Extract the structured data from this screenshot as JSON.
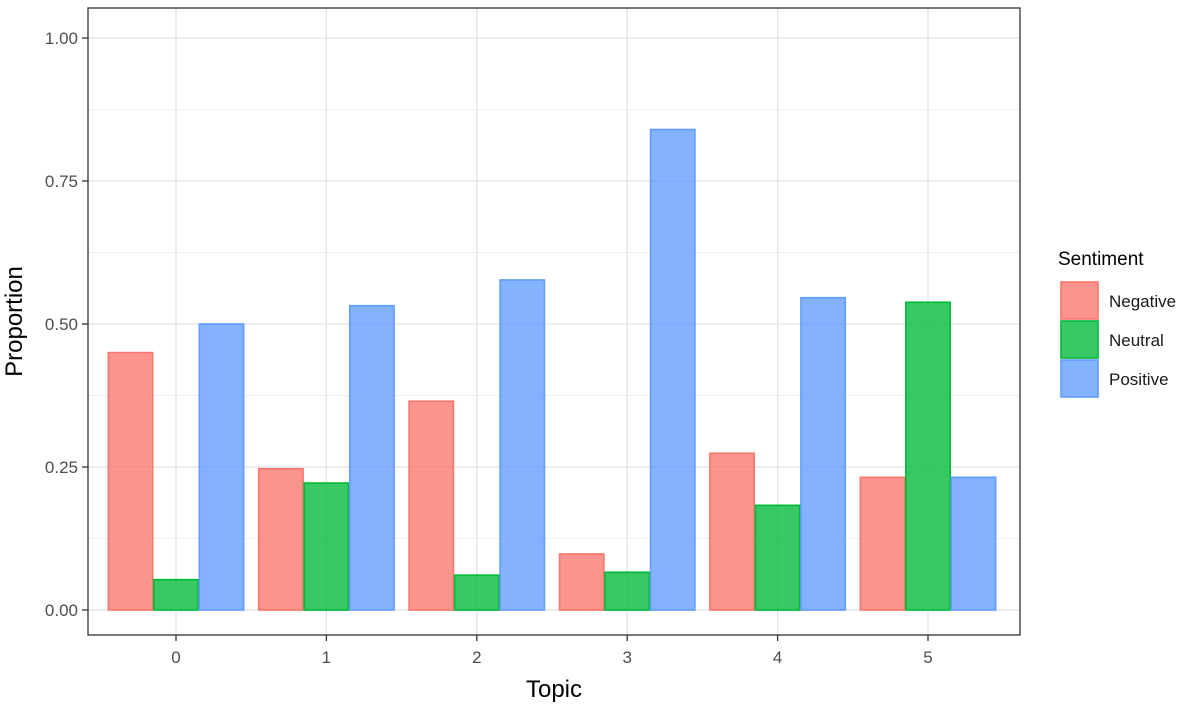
{
  "chart_data": {
    "type": "bar",
    "title": "",
    "xlabel": "Topic",
    "ylabel": "Proportion",
    "categories": [
      "0",
      "1",
      "2",
      "3",
      "4",
      "5"
    ],
    "ylim": [
      0,
      1.0
    ],
    "yticks": [
      0.0,
      0.25,
      0.5,
      0.75,
      1.0
    ],
    "ytick_labels": [
      "0.00",
      "0.25",
      "0.50",
      "0.75",
      "1.00"
    ],
    "grid": true,
    "legend": {
      "title": "Sentiment",
      "position": "right"
    },
    "series": [
      {
        "name": "Negative",
        "color": "#F8766D",
        "values": [
          0.45,
          0.247,
          0.365,
          0.098,
          0.274,
          0.232
        ]
      },
      {
        "name": "Neutral",
        "color": "#00BA38",
        "values": [
          0.053,
          0.222,
          0.061,
          0.066,
          0.183,
          0.538
        ]
      },
      {
        "name": "Positive",
        "color": "#619CFF",
        "values": [
          0.5,
          0.532,
          0.577,
          0.84,
          0.546,
          0.232
        ]
      }
    ]
  }
}
